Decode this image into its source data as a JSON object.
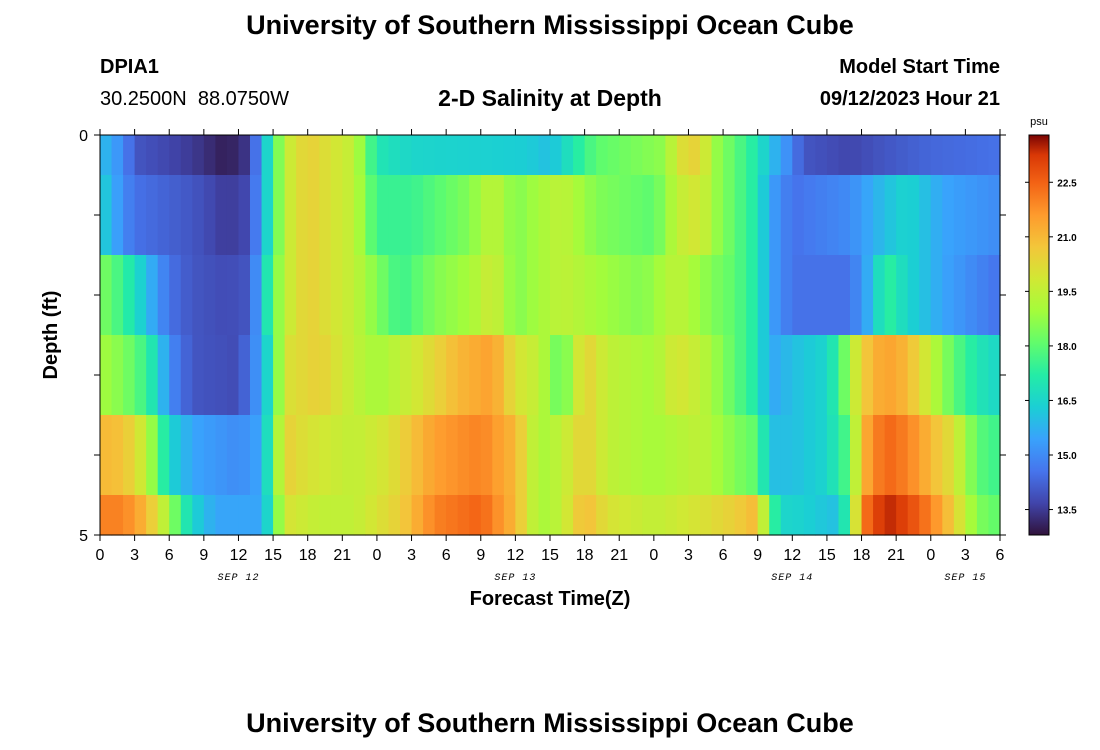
{
  "header": {
    "title": "University of Southern Mississippi Ocean Cube",
    "footer_title": "University of Southern Mississippi Ocean Cube",
    "station_id": "DPIA1",
    "station_coords": "30.2500N  88.0750W",
    "plot_title": "2-D Salinity at Depth",
    "model_label": "Model Start Time",
    "model_time": "09/12/2023 Hour 21"
  },
  "chart_data": {
    "type": "heatmap",
    "title": "2-D Salinity at Depth",
    "xlabel": "Forecast Time(Z)",
    "ylabel": "Depth (ft)",
    "x_start_hour": 0,
    "x_step_hours": 1,
    "xlim": [
      0,
      78
    ],
    "ylim": [
      0,
      5
    ],
    "y_ticks": [
      "0",
      "5"
    ],
    "y_layer_edges": [
      0,
      0.5,
      1.5,
      2.5,
      3.5,
      4.5,
      5
    ],
    "x_ticks": [
      "0",
      "3",
      "6",
      "9",
      "12",
      "15",
      "18",
      "21",
      "0",
      "3",
      "6",
      "9",
      "12",
      "15",
      "18",
      "21",
      "0",
      "3",
      "6",
      "9",
      "12",
      "15",
      "18",
      "21",
      "0",
      "3",
      "6"
    ],
    "date_labels": [
      {
        "text": "SEP 12",
        "hour": 12
      },
      {
        "text": "SEP 13",
        "hour": 36
      },
      {
        "text": "SEP 14",
        "hour": 60
      },
      {
        "text": "SEP 15",
        "hour": 75
      }
    ],
    "colorbar": {
      "unit": "psu",
      "min": 12.8,
      "max": 23.8,
      "ticks": [
        "13.5",
        "15.0",
        "16.5",
        "18.0",
        "19.5",
        "21.0",
        "22.5"
      ]
    },
    "layer_keys": {
      "depth_0": [
        [
          0,
          16
        ],
        [
          2,
          15
        ],
        [
          3,
          14
        ],
        [
          8,
          13.5
        ],
        [
          11,
          13
        ],
        [
          13,
          13.5
        ],
        [
          14,
          15.5
        ],
        [
          15,
          17.5
        ],
        [
          16,
          19.5
        ],
        [
          18,
          20.5
        ],
        [
          22,
          19.5
        ],
        [
          24,
          17
        ],
        [
          27,
          16.5
        ],
        [
          37,
          16.3
        ],
        [
          39,
          16
        ],
        [
          41,
          17
        ],
        [
          43,
          18
        ],
        [
          49,
          18.7
        ],
        [
          50,
          20
        ],
        [
          52,
          20.5
        ],
        [
          53,
          19
        ],
        [
          55,
          18
        ],
        [
          57,
          17
        ],
        [
          58,
          16
        ],
        [
          59,
          15.5
        ],
        [
          61,
          14
        ],
        [
          65,
          13.7
        ],
        [
          68,
          14
        ],
        [
          72,
          14.3
        ],
        [
          78,
          14.5
        ]
      ],
      "depth_1": [
        [
          0,
          16.5
        ],
        [
          2,
          15
        ],
        [
          3,
          14.5
        ],
        [
          8,
          14
        ],
        [
          11,
          13.5
        ],
        [
          13,
          13.8
        ],
        [
          14,
          15.5
        ],
        [
          15,
          17.5
        ],
        [
          16,
          19.5
        ],
        [
          18,
          20.5
        ],
        [
          22,
          19.5
        ],
        [
          24,
          17.5
        ],
        [
          27,
          17.5
        ],
        [
          32,
          18.5
        ],
        [
          34,
          19.5
        ],
        [
          36,
          18.5
        ],
        [
          40,
          19.5
        ],
        [
          43,
          18.5
        ],
        [
          48,
          18
        ],
        [
          50,
          19.5
        ],
        [
          52,
          20
        ],
        [
          53,
          19
        ],
        [
          55,
          18
        ],
        [
          57,
          17
        ],
        [
          58,
          15.5
        ],
        [
          60,
          14.5
        ],
        [
          65,
          15
        ],
        [
          68,
          16
        ],
        [
          70,
          16.5
        ],
        [
          73,
          15.5
        ],
        [
          78,
          15
        ]
      ],
      "depth_2": [
        [
          0,
          18.5
        ],
        [
          2,
          17.5
        ],
        [
          3,
          16.8
        ],
        [
          4,
          16
        ],
        [
          6,
          14.5
        ],
        [
          8,
          14
        ],
        [
          11,
          13.8
        ],
        [
          13,
          14
        ],
        [
          14,
          16
        ],
        [
          15,
          18
        ],
        [
          16,
          19.5
        ],
        [
          18,
          20.5
        ],
        [
          22,
          19.5
        ],
        [
          24,
          18.5
        ],
        [
          26,
          17.5
        ],
        [
          29,
          18.5
        ],
        [
          32,
          19
        ],
        [
          34,
          19.8
        ],
        [
          36,
          18.5
        ],
        [
          40,
          19.5
        ],
        [
          43,
          19
        ],
        [
          47,
          18.5
        ],
        [
          50,
          19.5
        ],
        [
          53,
          18.5
        ],
        [
          55,
          18
        ],
        [
          57,
          17
        ],
        [
          58,
          15.5
        ],
        [
          60,
          14.5
        ],
        [
          65,
          14.5
        ],
        [
          67,
          16
        ],
        [
          68,
          17.5
        ],
        [
          70,
          16.5
        ],
        [
          73,
          15.5
        ],
        [
          78,
          14.5
        ]
      ],
      "depth_3": [
        [
          0,
          19
        ],
        [
          2,
          18.5
        ],
        [
          4,
          17.5
        ],
        [
          5,
          16.5
        ],
        [
          6,
          15
        ],
        [
          8,
          14
        ],
        [
          12,
          13.8
        ],
        [
          14,
          15.5
        ],
        [
          15,
          17.5
        ],
        [
          16,
          20
        ],
        [
          19,
          20.5
        ],
        [
          22,
          19.5
        ],
        [
          24,
          19
        ],
        [
          28,
          20
        ],
        [
          31,
          21
        ],
        [
          34,
          21.5
        ],
        [
          36,
          20
        ],
        [
          38,
          19.5
        ],
        [
          40,
          18
        ],
        [
          42,
          20.5
        ],
        [
          44,
          19.5
        ],
        [
          48,
          19
        ],
        [
          50,
          20
        ],
        [
          52,
          19.5
        ],
        [
          55,
          18
        ],
        [
          57,
          17
        ],
        [
          58,
          15.5
        ],
        [
          60,
          16
        ],
        [
          63,
          16.5
        ],
        [
          64,
          17.5
        ],
        [
          66,
          20.5
        ],
        [
          68,
          21.5
        ],
        [
          70,
          21
        ],
        [
          72,
          19.5
        ],
        [
          74,
          18
        ],
        [
          76,
          17
        ],
        [
          78,
          16.5
        ]
      ],
      "depth_4": [
        [
          0,
          21
        ],
        [
          2,
          20.8
        ],
        [
          4,
          19.5
        ],
        [
          5,
          18
        ],
        [
          6,
          16.5
        ],
        [
          8,
          15.5
        ],
        [
          12,
          15
        ],
        [
          14,
          15.5
        ],
        [
          15,
          18
        ],
        [
          16,
          20.5
        ],
        [
          18,
          20
        ],
        [
          22,
          19.5
        ],
        [
          25,
          20
        ],
        [
          29,
          21.5
        ],
        [
          33,
          22
        ],
        [
          36,
          21
        ],
        [
          38,
          19
        ],
        [
          40,
          19.5
        ],
        [
          42,
          20.5
        ],
        [
          44,
          19.5
        ],
        [
          48,
          19
        ],
        [
          52,
          19.5
        ],
        [
          55,
          18.5
        ],
        [
          57,
          18
        ],
        [
          58,
          16
        ],
        [
          60,
          16
        ],
        [
          63,
          16.5
        ],
        [
          65,
          18
        ],
        [
          66,
          21
        ],
        [
          68,
          22.5
        ],
        [
          70,
          22
        ],
        [
          72,
          21
        ],
        [
          74,
          20
        ],
        [
          76,
          18
        ],
        [
          78,
          17.5
        ]
      ],
      "depth_5": [
        [
          0,
          22
        ],
        [
          2,
          22
        ],
        [
          4,
          21
        ],
        [
          5,
          20
        ],
        [
          6,
          19
        ],
        [
          7,
          17.5
        ],
        [
          8,
          16.5
        ],
        [
          10,
          15.5
        ],
        [
          12,
          15.5
        ],
        [
          14,
          15.5
        ],
        [
          15,
          17.5
        ],
        [
          16,
          20
        ],
        [
          19,
          19.5
        ],
        [
          22,
          19.5
        ],
        [
          26,
          20.5
        ],
        [
          29,
          22
        ],
        [
          33,
          22.5
        ],
        [
          36,
          21
        ],
        [
          38,
          19
        ],
        [
          40,
          19.5
        ],
        [
          42,
          21
        ],
        [
          44,
          20
        ],
        [
          48,
          19.5
        ],
        [
          52,
          20
        ],
        [
          55,
          20.5
        ],
        [
          57,
          21
        ],
        [
          58,
          18
        ],
        [
          59,
          16.5
        ],
        [
          60,
          16.5
        ],
        [
          64,
          16
        ],
        [
          65,
          18
        ],
        [
          66,
          22
        ],
        [
          68,
          23.5
        ],
        [
          70,
          23
        ],
        [
          72,
          22
        ],
        [
          74,
          20.5
        ],
        [
          76,
          18.5
        ],
        [
          78,
          18
        ]
      ]
    }
  }
}
